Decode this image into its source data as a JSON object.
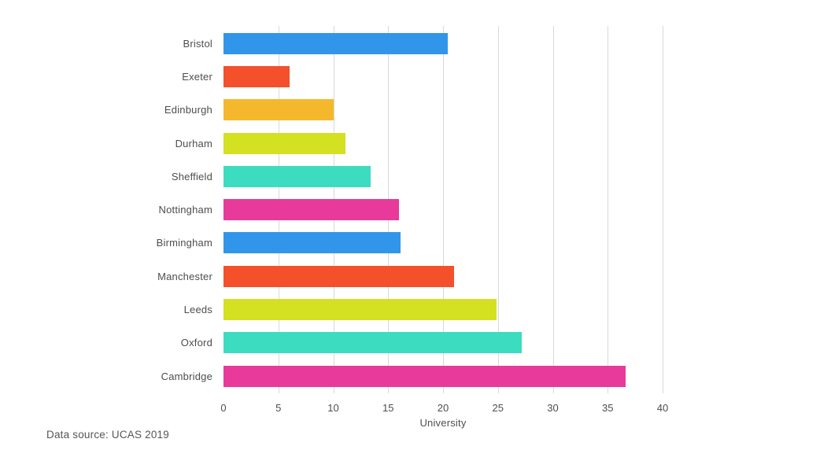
{
  "chart_data": {
    "type": "bar",
    "orientation": "horizontal",
    "title": "",
    "xlabel": "University",
    "categories": [
      "Bristol",
      "Exeter",
      "Edinburgh",
      "Durham",
      "Sheffield",
      "Nottingham",
      "Birmingham",
      "Manchester",
      "Leeds",
      "Oxford",
      "Cambridge"
    ],
    "values": [
      20.4,
      6.0,
      10.0,
      11.1,
      13.4,
      16.0,
      16.1,
      21.0,
      24.9,
      27.2,
      36.6
    ],
    "bar_colors": [
      "#3196EA",
      "#F4502B",
      "#F5B82D",
      "#D4E022",
      "#3CDCC1",
      "#E83A9B",
      "#3196EA",
      "#F4502B",
      "#D4E022",
      "#3CDCC1",
      "#E83A9B"
    ],
    "xlim": [
      0,
      40
    ],
    "xticks": [
      0,
      5,
      10,
      15,
      20,
      25,
      30,
      35,
      40
    ],
    "grid": "vertical-gridlines-behind-bars",
    "legend": "none"
  },
  "footer": {
    "source_note": "Data source: UCAS 2019"
  },
  "colors": {
    "background": "#ffffff",
    "gridline": "#d9d9d9",
    "label_text": "#4d4d4d",
    "source_text": "#555555"
  }
}
